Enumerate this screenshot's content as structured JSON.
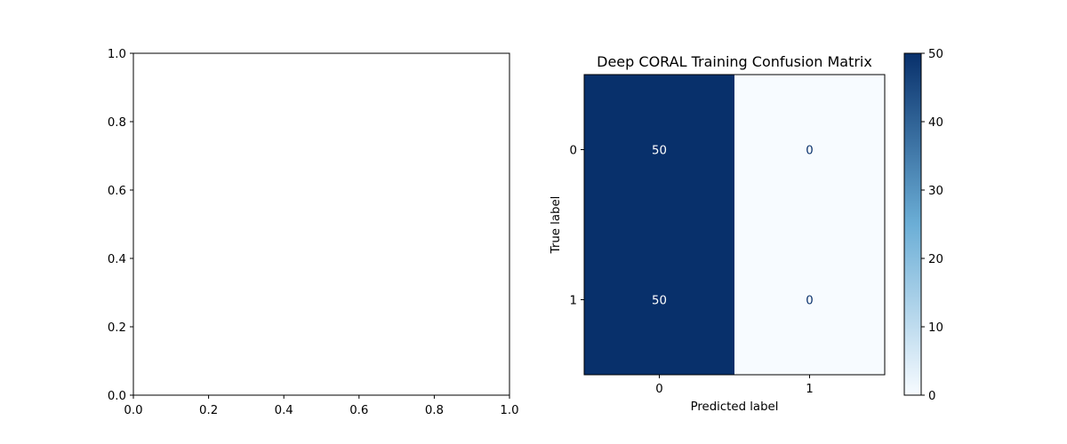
{
  "colors": {
    "axis": "#000000",
    "cmap_low": "#f7fbff",
    "cmap_mid": "#6baed6",
    "cmap_high": "#08306b",
    "text_on_dark": "#ffffff",
    "text_on_light": "#08306b"
  },
  "chart_data": [
    {
      "type": "scatter",
      "title": "",
      "xlabel": "",
      "ylabel": "",
      "xlim": [
        0.0,
        1.0
      ],
      "ylim": [
        0.0,
        1.0
      ],
      "xticks": [
        "0.0",
        "0.2",
        "0.4",
        "0.6",
        "0.8",
        "1.0"
      ],
      "yticks": [
        "0.0",
        "0.2",
        "0.4",
        "0.6",
        "0.8",
        "1.0"
      ],
      "grid": false,
      "series": []
    },
    {
      "type": "heatmap",
      "title": "Deep CORAL Training Confusion Matrix",
      "xlabel": "Predicted label",
      "ylabel": "True label",
      "x_categories": [
        "0",
        "1"
      ],
      "y_categories": [
        "0",
        "1"
      ],
      "values": [
        [
          50,
          0
        ],
        [
          50,
          0
        ]
      ],
      "colormap": "Blues",
      "colorbar": {
        "range": [
          0,
          50
        ],
        "ticks": [
          "0",
          "10",
          "20",
          "30",
          "40",
          "50"
        ]
      }
    }
  ]
}
